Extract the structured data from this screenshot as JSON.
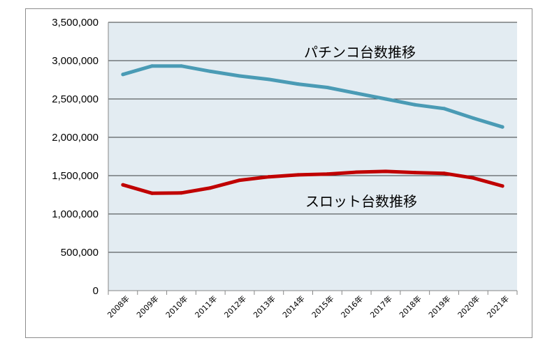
{
  "chart_data": {
    "type": "line",
    "title": "",
    "xlabel": "",
    "ylabel": "",
    "categories": [
      "2008年",
      "2009年",
      "2010年",
      "2011年",
      "2012年",
      "2013年",
      "2014年",
      "2015年",
      "2016年",
      "2017年",
      "2018年",
      "2019年",
      "2020年",
      "2021年"
    ],
    "y_ticks": [
      "0",
      "500,000",
      "1,000,000",
      "1,500,000",
      "2,000,000",
      "2,500,000",
      "3,000,000",
      "3,500,000"
    ],
    "ylim": [
      0,
      3500000
    ],
    "grid": true,
    "legend": "none",
    "series": [
      {
        "name": "パチンコ台数推移",
        "color": "#4a9bb5",
        "values": [
          2820000,
          2930000,
          2930000,
          2860000,
          2800000,
          2755000,
          2695000,
          2650000,
          2575000,
          2500000,
          2425000,
          2375000,
          2250000,
          2135000
        ]
      },
      {
        "name": "スロット台数推移",
        "color": "#c00000",
        "values": [
          1380000,
          1270000,
          1275000,
          1340000,
          1440000,
          1485000,
          1510000,
          1520000,
          1545000,
          1555000,
          1540000,
          1530000,
          1470000,
          1365000
        ]
      }
    ],
    "plot_background": "#e3ecf2",
    "gridline_color": "#000000"
  }
}
